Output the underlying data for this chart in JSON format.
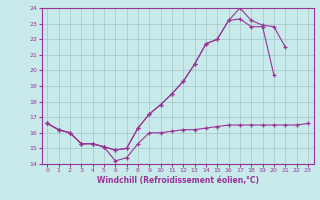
{
  "title": "",
  "xlabel": "Windchill (Refroidissement éolien,°C)",
  "ylabel": "",
  "bg_color": "#c8eaea",
  "grid_color": "#aacccc",
  "line_color": "#993399",
  "xlim": [
    -0.5,
    23.5
  ],
  "ylim": [
    14,
    24
  ],
  "yticks": [
    14,
    15,
    16,
    17,
    18,
    19,
    20,
    21,
    22,
    23,
    24
  ],
  "xticks": [
    0,
    1,
    2,
    3,
    4,
    5,
    6,
    7,
    8,
    9,
    10,
    11,
    12,
    13,
    14,
    15,
    16,
    17,
    18,
    19,
    20,
    21,
    22,
    23
  ],
  "line1_x": [
    0,
    1,
    2,
    3,
    4,
    5,
    6,
    7,
    8,
    9,
    10,
    11,
    12,
    13,
    14,
    15,
    16,
    17,
    18,
    19,
    20,
    21,
    22,
    23
  ],
  "line1_y": [
    16.6,
    16.2,
    16.0,
    15.3,
    15.3,
    15.1,
    14.2,
    14.4,
    15.3,
    16.0,
    16.0,
    16.1,
    16.2,
    16.2,
    16.3,
    16.4,
    16.5,
    16.5,
    16.5,
    16.5,
    16.5,
    16.5,
    16.5,
    16.6
  ],
  "line2_x": [
    0,
    1,
    2,
    3,
    4,
    5,
    6,
    7,
    8,
    9,
    10,
    11,
    12,
    13,
    14,
    15,
    16,
    17,
    18,
    19,
    20,
    21,
    22,
    23
  ],
  "line2_y": [
    16.6,
    16.2,
    16.0,
    15.3,
    15.3,
    15.1,
    14.9,
    15.0,
    16.3,
    17.2,
    17.8,
    18.5,
    19.3,
    20.4,
    21.7,
    22.0,
    23.2,
    23.3,
    22.8,
    22.8,
    19.7,
    null,
    null,
    null
  ],
  "line3_x": [
    0,
    1,
    2,
    3,
    4,
    5,
    6,
    7,
    8,
    9,
    10,
    11,
    12,
    13,
    14,
    15,
    16,
    17,
    18,
    19,
    20,
    21,
    22,
    23
  ],
  "line3_y": [
    16.6,
    16.2,
    16.0,
    15.3,
    15.3,
    15.1,
    14.9,
    15.0,
    16.3,
    17.2,
    17.8,
    18.5,
    19.3,
    20.4,
    21.7,
    22.0,
    23.2,
    24.0,
    23.2,
    22.9,
    22.8,
    21.5,
    null,
    null
  ]
}
